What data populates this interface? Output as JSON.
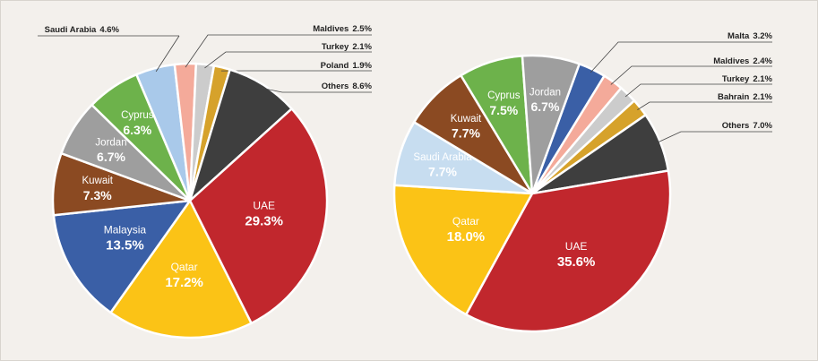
{
  "chart_data": [
    {
      "type": "pie",
      "categories": [
        "Saudi Arabia",
        "Maldives",
        "Turkey",
        "Poland",
        "Others",
        "UAE",
        "Qatar",
        "Malaysia",
        "Kuwait",
        "Jordan",
        "Cyprus"
      ],
      "values": [
        4.6,
        2.5,
        2.1,
        1.9,
        8.6,
        29.3,
        17.2,
        13.5,
        7.3,
        6.7,
        6.3
      ],
      "value_labels": [
        "4.6%",
        "2.5%",
        "2.1%",
        "1.9%",
        "8.6%",
        "29.3%",
        "17.2%",
        "13.5%",
        "7.3%",
        "6.7%",
        "6.3%"
      ],
      "colors": [
        "#a9c9ea",
        "#f4aa9a",
        "#cccccc",
        "#d6a22b",
        "#3e3e3e",
        "#c1272d",
        "#fbc316",
        "#3a5fa6",
        "#8b4a22",
        "#9e9e9e",
        "#6db24b"
      ]
    },
    {
      "type": "pie",
      "categories": [
        "Malta",
        "Maldives",
        "Turkey",
        "Bahrain",
        "Others",
        "UAE",
        "Qatar",
        "Saudi Arabia",
        "Kuwait",
        "Cyprus",
        "Jordan"
      ],
      "values": [
        3.2,
        2.4,
        2.1,
        2.1,
        7.0,
        35.6,
        18.0,
        7.7,
        7.7,
        7.5,
        6.7
      ],
      "value_labels": [
        "3.2%",
        "2.4%",
        "2.1%",
        "2.1%",
        "7.0%",
        "35.6%",
        "18.0%",
        "7.7%",
        "7.7%",
        "7.5%",
        "6.7%"
      ],
      "colors": [
        "#3a5fa6",
        "#f4aa9a",
        "#cccccc",
        "#d6a22b",
        "#3e3e3e",
        "#c1272d",
        "#fbc316",
        "#c7ddf0",
        "#8b4a22",
        "#6db24b",
        "#9e9e9e"
      ]
    }
  ]
}
